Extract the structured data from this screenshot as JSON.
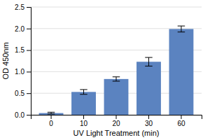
{
  "chart_data": {
    "type": "bar",
    "categories": [
      "0",
      "10",
      "20",
      "30",
      "60"
    ],
    "values": [
      0.04,
      0.53,
      0.83,
      1.23,
      1.99
    ],
    "errors": [
      0.02,
      0.055,
      0.05,
      0.1,
      0.07
    ],
    "color": "#5B83C0",
    "xlabel": "UV Light Treatment (min)",
    "ylabel": "OD 450nm",
    "ylim": [
      0,
      2.5
    ],
    "yticks": [
      {
        "value": 0,
        "label": "0.0"
      },
      0.5,
      {
        "value": 1,
        "label": "1.0"
      },
      1.5,
      {
        "value": 2,
        "label": "2.0"
      },
      2.5
    ],
    "grid": true
  }
}
